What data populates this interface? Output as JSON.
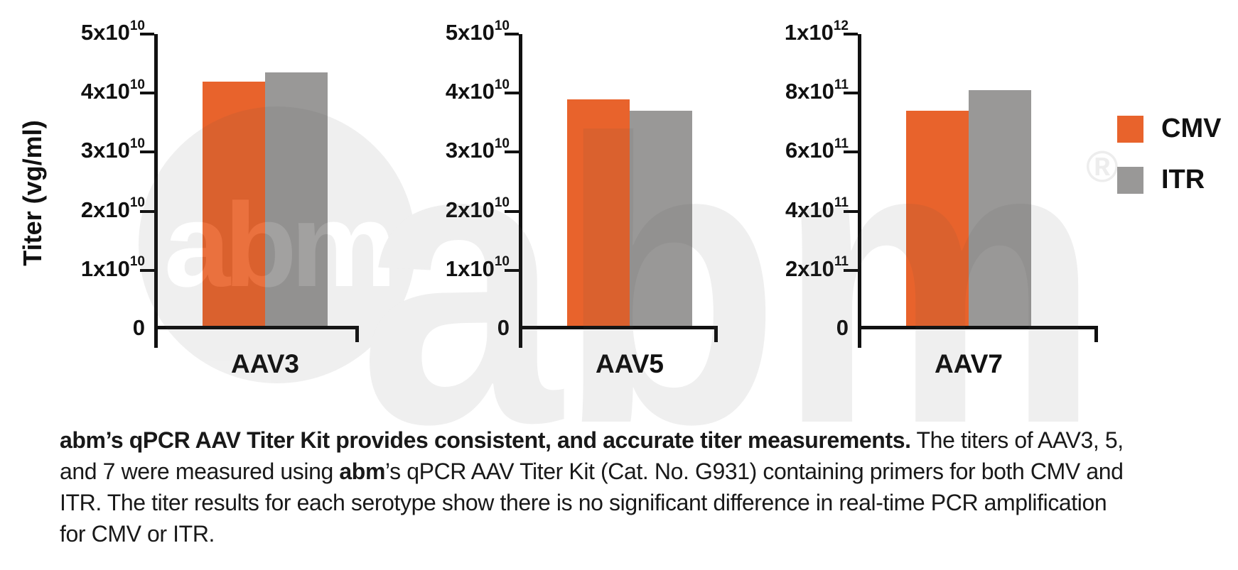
{
  "figure": {
    "ylabel": "Titer (vg/ml)",
    "watermark": {
      "circle_text": "abm",
      "big_text": "abm",
      "registered_mark": "®"
    }
  },
  "legend": {
    "position": "right",
    "items": [
      {
        "label": "CMV",
        "color": "#E8632C"
      },
      {
        "label": "ITR",
        "color": "#999897"
      }
    ]
  },
  "chart_data": [
    {
      "type": "bar",
      "category": "AAV3",
      "ylabel": "Titer (vg/ml)",
      "ylim": [
        0,
        50000000000.0
      ],
      "yticks": [
        0,
        10000000000.0,
        20000000000.0,
        30000000000.0,
        40000000000.0,
        50000000000.0
      ],
      "ytick_labels": [
        {
          "t": "5x10",
          "s": "10"
        },
        {
          "t": "4x10",
          "s": "10"
        },
        {
          "t": "3x10",
          "s": "10"
        },
        {
          "t": "2x10",
          "s": "10"
        },
        {
          "t": "1x10",
          "s": "10"
        },
        {
          "t": "0",
          "s": ""
        }
      ],
      "grid": false,
      "series": [
        {
          "name": "CMV",
          "value": 42000000000.0,
          "color": "#E8632C"
        },
        {
          "name": "ITR",
          "value": 43500000000.0,
          "color": "#999897"
        }
      ]
    },
    {
      "type": "bar",
      "category": "AAV5",
      "ylabel": "Titer (vg/ml)",
      "ylim": [
        0,
        50000000000.0
      ],
      "yticks": [
        0,
        10000000000.0,
        20000000000.0,
        30000000000.0,
        40000000000.0,
        50000000000.0
      ],
      "ytick_labels": [
        {
          "t": "5x10",
          "s": "10"
        },
        {
          "t": "4x10",
          "s": "10"
        },
        {
          "t": "3x10",
          "s": "10"
        },
        {
          "t": "2x10",
          "s": "10"
        },
        {
          "t": "1x10",
          "s": "10"
        },
        {
          "t": "0",
          "s": ""
        }
      ],
      "grid": false,
      "series": [
        {
          "name": "CMV",
          "value": 39000000000.0,
          "color": "#E8632C"
        },
        {
          "name": "ITR",
          "value": 37000000000.0,
          "color": "#999897"
        }
      ]
    },
    {
      "type": "bar",
      "category": "AAV7",
      "ylabel": "Titer (vg/ml)",
      "ylim": [
        0,
        1000000000000.0
      ],
      "yticks": [
        0,
        200000000000.0,
        400000000000.0,
        600000000000.0,
        800000000000.0,
        1000000000000.0
      ],
      "ytick_labels": [
        {
          "t": "1x10",
          "s": "12"
        },
        {
          "t": "8x10",
          "s": "11"
        },
        {
          "t": "6x10",
          "s": "11"
        },
        {
          "t": "4x10",
          "s": "11"
        },
        {
          "t": "2x10",
          "s": "11"
        },
        {
          "t": "0",
          "s": ""
        }
      ],
      "grid": false,
      "series": [
        {
          "name": "CMV",
          "value": 740000000000.0,
          "color": "#E8632C"
        },
        {
          "name": "ITR",
          "value": 810000000000.0,
          "color": "#999897"
        }
      ]
    }
  ],
  "caption": {
    "bold_intro": "abm’s qPCR AAV Titer Kit provides consistent, and accurate titer measurements.",
    "text_1": " The titers of AAV3, 5, and 7 were measured using ",
    "bold_brand": "abm",
    "text_2": "’s qPCR AAV Titer Kit (Cat. No. G931) containing primers for both CMV and ITR. The titer results for each serotype show there is no significant difference in real-time PCR amplification for CMV or ITR."
  }
}
